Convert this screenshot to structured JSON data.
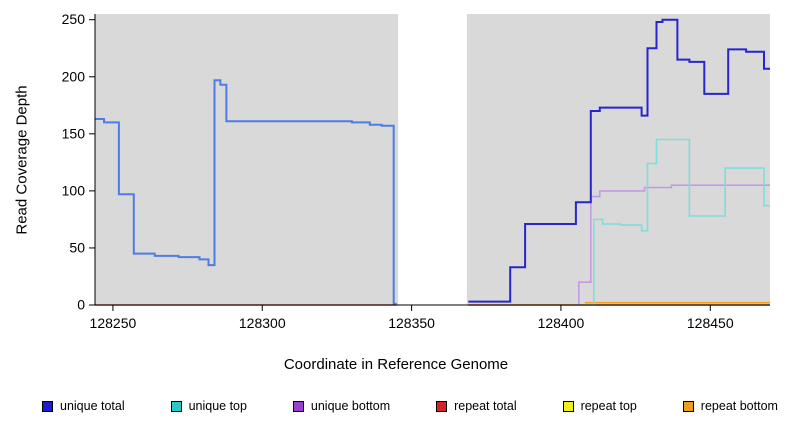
{
  "chart_data": {
    "type": "line",
    "title": "",
    "xlabel": "Coordinate in Reference Genome",
    "ylabel": "Read Coverage Depth",
    "xlim": [
      128244,
      128470
    ],
    "ylim": [
      0,
      255
    ],
    "xticks": [
      128250,
      128300,
      128350,
      128400,
      128450
    ],
    "yticks": [
      0,
      50,
      100,
      150,
      200,
      250
    ],
    "grid": false,
    "plot_bg": "#d9d9d9",
    "gap_region": [
      128345.5,
      128368.5
    ],
    "legend_position": "bottom",
    "legend": [
      {
        "label": "unique total",
        "color": "#1c1ccd"
      },
      {
        "label": "unique top",
        "color": "#2cc8c8"
      },
      {
        "label": "unique bottom",
        "color": "#9940cc"
      },
      {
        "label": "repeat total",
        "color": "#d62222"
      },
      {
        "label": "repeat top",
        "color": "#f0ee20"
      },
      {
        "label": "repeat bottom",
        "color": "#f09c1e"
      }
    ],
    "series": [
      {
        "name": "repeat top",
        "slug": "repeat-top",
        "color": "#f2ef1d",
        "width": 1.6,
        "segments": [
          [
            [
              128369,
              0
            ],
            [
              128470,
              0
            ]
          ]
        ]
      },
      {
        "name": "repeat total",
        "slug": "repeat-total",
        "color": "#e05050",
        "width": 1.6,
        "segments": [
          [
            [
              128244,
              0
            ],
            [
              128345,
              0
            ]
          ],
          [
            [
              128369,
              0
            ],
            [
              128470,
              0
            ]
          ]
        ]
      },
      {
        "name": "repeat bottom",
        "slug": "repeat-bottom",
        "color": "#f5a11d",
        "width": 1.6,
        "segments": [
          [
            [
              128408,
              2
            ],
            [
              128470,
              2
            ]
          ]
        ]
      },
      {
        "name": "unique bottom",
        "slug": "unique-bottom",
        "color": "#c49ae2",
        "width": 1.6,
        "segments": [
          [
            [
              128404,
              0
            ],
            [
              128406,
              20
            ],
            [
              128410,
              95
            ],
            [
              128413,
              100
            ],
            [
              128428,
              103
            ],
            [
              128437,
              105
            ],
            [
              128470,
              105
            ]
          ]
        ]
      },
      {
        "name": "unique top",
        "slug": "unique-top",
        "color": "#7ddede",
        "width": 1.6,
        "segments": [
          [
            [
              128408,
              0
            ],
            [
              128411,
              75
            ],
            [
              128414,
              71
            ],
            [
              128420,
              70
            ],
            [
              128427,
              65
            ],
            [
              128429,
              124
            ],
            [
              128432,
              145
            ],
            [
              128443,
              78
            ],
            [
              128455,
              120
            ],
            [
              128468,
              87
            ],
            [
              128470,
              87
            ]
          ]
        ]
      },
      {
        "name": "unique total (left of gap)",
        "slug": "unique-total-left",
        "color": "#4e7ce6",
        "width": 2,
        "segments": [
          [
            [
              128244,
              163
            ],
            [
              128247,
              160
            ],
            [
              128252,
              97
            ],
            [
              128257,
              45
            ],
            [
              128264,
              43
            ],
            [
              128272,
              42
            ],
            [
              128279,
              40
            ],
            [
              128282,
              35
            ],
            [
              128284,
              197
            ],
            [
              128286,
              193
            ],
            [
              128288,
              161
            ],
            [
              128330,
              160
            ],
            [
              128336,
              158
            ],
            [
              128340,
              157
            ],
            [
              128344,
              1
            ],
            [
              128345,
              1
            ]
          ]
        ]
      },
      {
        "name": "unique total (right of gap)",
        "slug": "unique-total-right",
        "color": "#2626cc",
        "width": 2,
        "segments": [
          [
            [
              128369,
              3
            ],
            [
              128383,
              33
            ],
            [
              128388,
              71
            ],
            [
              128405,
              90
            ],
            [
              128410,
              170
            ],
            [
              128413,
              173
            ],
            [
              128427,
              166
            ],
            [
              128429,
              225
            ],
            [
              128432,
              248
            ],
            [
              128434,
              250
            ],
            [
              128439,
              215
            ],
            [
              128443,
              213
            ],
            [
              128448,
              185
            ],
            [
              128456,
              224
            ],
            [
              128462,
              222
            ],
            [
              128468,
              207
            ],
            [
              128470,
              207
            ]
          ]
        ]
      }
    ]
  }
}
